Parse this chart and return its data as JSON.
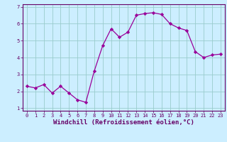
{
  "x": [
    0,
    1,
    2,
    3,
    4,
    5,
    6,
    7,
    8,
    9,
    10,
    11,
    12,
    13,
    14,
    15,
    16,
    17,
    18,
    19,
    20,
    21,
    22,
    23
  ],
  "y": [
    2.3,
    2.2,
    2.4,
    1.9,
    2.3,
    1.9,
    1.5,
    1.35,
    3.2,
    4.7,
    5.7,
    5.2,
    5.5,
    6.5,
    6.6,
    6.65,
    6.55,
    6.0,
    5.75,
    5.6,
    4.35,
    4.0,
    4.15,
    4.2
  ],
  "line_color": "#990099",
  "marker": "D",
  "marker_size": 2.2,
  "bg_color": "#cceeff",
  "grid_color": "#99cccc",
  "xlabel": "Windchill (Refroidissement éolien,°C)",
  "xlim": [
    -0.5,
    23.5
  ],
  "ylim": [
    0.85,
    7.15
  ],
  "yticks": [
    1,
    2,
    3,
    4,
    5,
    6,
    7
  ],
  "xticks": [
    0,
    1,
    2,
    3,
    4,
    5,
    6,
    7,
    8,
    9,
    10,
    11,
    12,
    13,
    14,
    15,
    16,
    17,
    18,
    19,
    20,
    21,
    22,
    23
  ],
  "tick_fontsize": 5.0,
  "xlabel_fontsize": 6.5,
  "text_color": "#660066",
  "spine_color": "#660066",
  "linewidth": 0.9
}
